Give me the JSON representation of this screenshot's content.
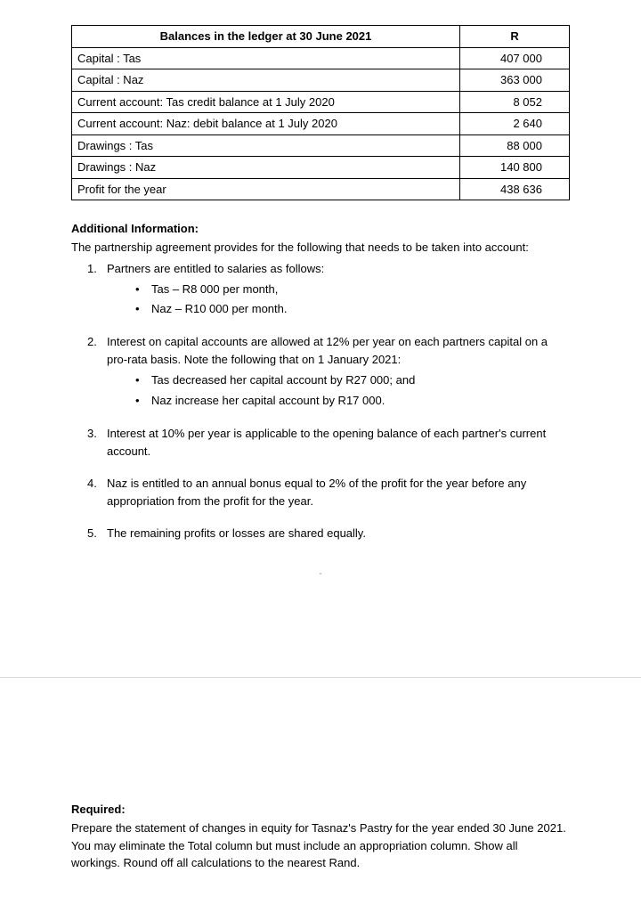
{
  "table": {
    "header_left": "Balances in the ledger at 30 June 2021",
    "header_right": "R",
    "rows": [
      {
        "label": "Capital : Tas",
        "value": "407 000"
      },
      {
        "label": "Capital : Naz",
        "value": "363 000"
      },
      {
        "label": "Current account: Tas credit balance at 1 July 2020",
        "value": "8 052"
      },
      {
        "label": "Current account: Naz: debit balance at 1 July 2020",
        "value": "2 640"
      },
      {
        "label": "Drawings : Tas",
        "value": "88 000"
      },
      {
        "label": "Drawings : Naz",
        "value": "140 800"
      },
      {
        "label": "Profit for the year",
        "value": "438 636"
      }
    ]
  },
  "addinfo_head": "Additional Information:",
  "addinfo_intro": "The partnership agreement provides for the following that needs to be taken into account:",
  "items": {
    "i1": {
      "text": "Partners are entitled to salaries as follows:",
      "bullets": [
        "Tas – R8 000 per month,",
        "Naz – R10 000 per month."
      ]
    },
    "i2": {
      "text": "Interest on capital accounts are allowed at 12% per year on each partners capital on a pro-rata basis. Note the following  that on 1 January 2021:",
      "bullets": [
        "Tas decreased her capital account by R27 000; and",
        "Naz increase her capital account by R17 000."
      ]
    },
    "i3": {
      "text": "Interest at 10% per year is applicable to the opening balance of each partner's current account."
    },
    "i4": {
      "text": "Naz is entitled to an annual bonus equal to 2% of the profit for the year before any appropriation from the profit for the year."
    },
    "i5": {
      "text": "The remaining profits or losses are shared equally."
    }
  },
  "required_head": "Required:",
  "required_text": "Prepare the statement of changes in equity for Tasnaz's Pastry for the year ended 30 June 2021. You may eliminate the Total column but must include an appropriation column. Show all workings. Round off all calculations to the nearest Rand."
}
